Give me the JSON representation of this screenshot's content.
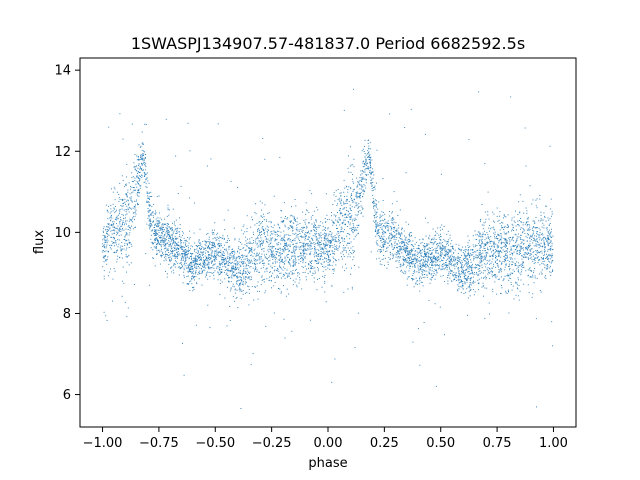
{
  "chart_data": {
    "type": "scatter",
    "title": "1SWASPJ134907.57-481837.0 Period 6682592.5s",
    "xlabel": "phase",
    "ylabel": "flux",
    "xlim": [
      -1.1,
      1.1
    ],
    "ylim": [
      5.2,
      14.3
    ],
    "xticks": [
      -1.0,
      -0.75,
      -0.5,
      -0.25,
      0.0,
      0.25,
      0.5,
      0.75,
      1.0
    ],
    "xtick_labels": [
      "−1.00",
      "−0.75",
      "−0.50",
      "−0.25",
      "0.00",
      "0.25",
      "0.50",
      "0.75",
      "1.00"
    ],
    "yticks": [
      6,
      8,
      10,
      12,
      14
    ],
    "ytick_labels": [
      "6",
      "8",
      "10",
      "12",
      "14"
    ],
    "grid": false,
    "marker_color": "#1f77b4",
    "series": [
      {
        "phase_range": [
          -1.0,
          1.0
        ],
        "profile": [
          {
            "phase": -1.0,
            "center": 9.6,
            "spread": 0.7
          },
          {
            "phase": -0.95,
            "center": 10.1,
            "spread": 0.9
          },
          {
            "phase": -0.88,
            "center": 10.4,
            "spread": 1.2
          },
          {
            "phase": -0.82,
            "center": 11.9,
            "spread": 0.4
          },
          {
            "phase": -0.78,
            "center": 10.0,
            "spread": 0.6
          },
          {
            "phase": -0.7,
            "center": 9.8,
            "spread": 0.6
          },
          {
            "phase": -0.6,
            "center": 9.2,
            "spread": 0.5
          },
          {
            "phase": -0.5,
            "center": 9.5,
            "spread": 0.5
          },
          {
            "phase": -0.4,
            "center": 9.0,
            "spread": 0.6
          },
          {
            "phase": -0.3,
            "center": 9.6,
            "spread": 0.8
          },
          {
            "phase": -0.2,
            "center": 9.5,
            "spread": 0.9
          },
          {
            "phase": -0.1,
            "center": 9.7,
            "spread": 0.8
          },
          {
            "phase": 0.0,
            "center": 9.6,
            "spread": 0.7
          },
          {
            "phase": 0.05,
            "center": 10.1,
            "spread": 0.9
          },
          {
            "phase": 0.12,
            "center": 10.4,
            "spread": 1.2
          },
          {
            "phase": 0.18,
            "center": 11.9,
            "spread": 0.4
          },
          {
            "phase": 0.22,
            "center": 10.0,
            "spread": 0.6
          },
          {
            "phase": 0.3,
            "center": 9.8,
            "spread": 0.6
          },
          {
            "phase": 0.4,
            "center": 9.2,
            "spread": 0.5
          },
          {
            "phase": 0.5,
            "center": 9.5,
            "spread": 0.5
          },
          {
            "phase": 0.6,
            "center": 9.0,
            "spread": 0.6
          },
          {
            "phase": 0.7,
            "center": 9.6,
            "spread": 0.8
          },
          {
            "phase": 0.8,
            "center": 9.5,
            "spread": 0.9
          },
          {
            "phase": 0.9,
            "center": 9.7,
            "spread": 0.8
          },
          {
            "phase": 1.0,
            "center": 9.6,
            "spread": 0.7
          }
        ]
      }
    ]
  }
}
